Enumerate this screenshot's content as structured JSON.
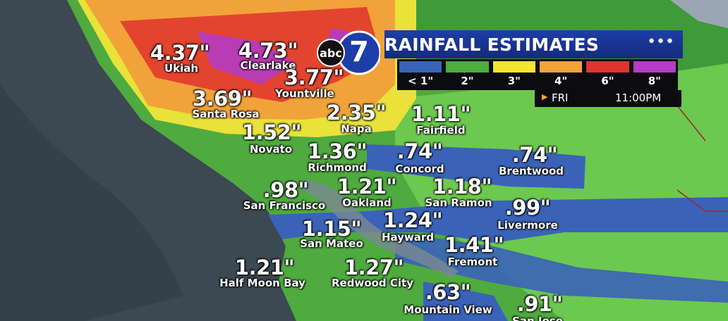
{
  "header": {
    "logo": {
      "text": "abc",
      "number": "7"
    },
    "title": "RAINFALL ESTIMATES",
    "legend": [
      {
        "label": "< 1\"",
        "color": "#3a63b8"
      },
      {
        "label": "2\"",
        "color": "#4cae3c"
      },
      {
        "label": "3\"",
        "color": "#f2e630"
      },
      {
        "label": "4\"",
        "color": "#f2a23a"
      },
      {
        "label": "6\"",
        "color": "#e0342e"
      },
      {
        "label": "8\"",
        "color": "#b53cc4"
      }
    ],
    "day": "FRI",
    "time": "11:00PM"
  },
  "cities": [
    {
      "name": "Ukiah",
      "value": "4.37\""
    },
    {
      "name": "Clearlake",
      "value": "4.73\""
    },
    {
      "name": "Yountville",
      "value": "3.77\""
    },
    {
      "name": "Santa Rosa",
      "value": "3.69\""
    },
    {
      "name": "Napa",
      "value": "2.35\""
    },
    {
      "name": "Fairfield",
      "value": "1.11\""
    },
    {
      "name": "Novato",
      "value": "1.52\""
    },
    {
      "name": "Richmond",
      "value": "1.36\""
    },
    {
      "name": "Concord",
      "value": ".74\""
    },
    {
      "name": "Brentwood",
      "value": ".74\""
    },
    {
      "name": "San Francisco",
      "value": ".98\""
    },
    {
      "name": "Oakland",
      "value": "1.21\""
    },
    {
      "name": "San Ramon",
      "value": "1.18\""
    },
    {
      "name": "Livermore",
      "value": ".99\""
    },
    {
      "name": "San Mateo",
      "value": "1.15\""
    },
    {
      "name": "Hayward",
      "value": "1.24\""
    },
    {
      "name": "Fremont",
      "value": "1.41\""
    },
    {
      "name": "Half Moon Bay",
      "value": "1.21\""
    },
    {
      "name": "Redwood City",
      "value": "1.27\""
    },
    {
      "name": "Mountain View",
      "value": ".63\""
    },
    {
      "name": "San Jose",
      "value": ".91\""
    }
  ]
}
